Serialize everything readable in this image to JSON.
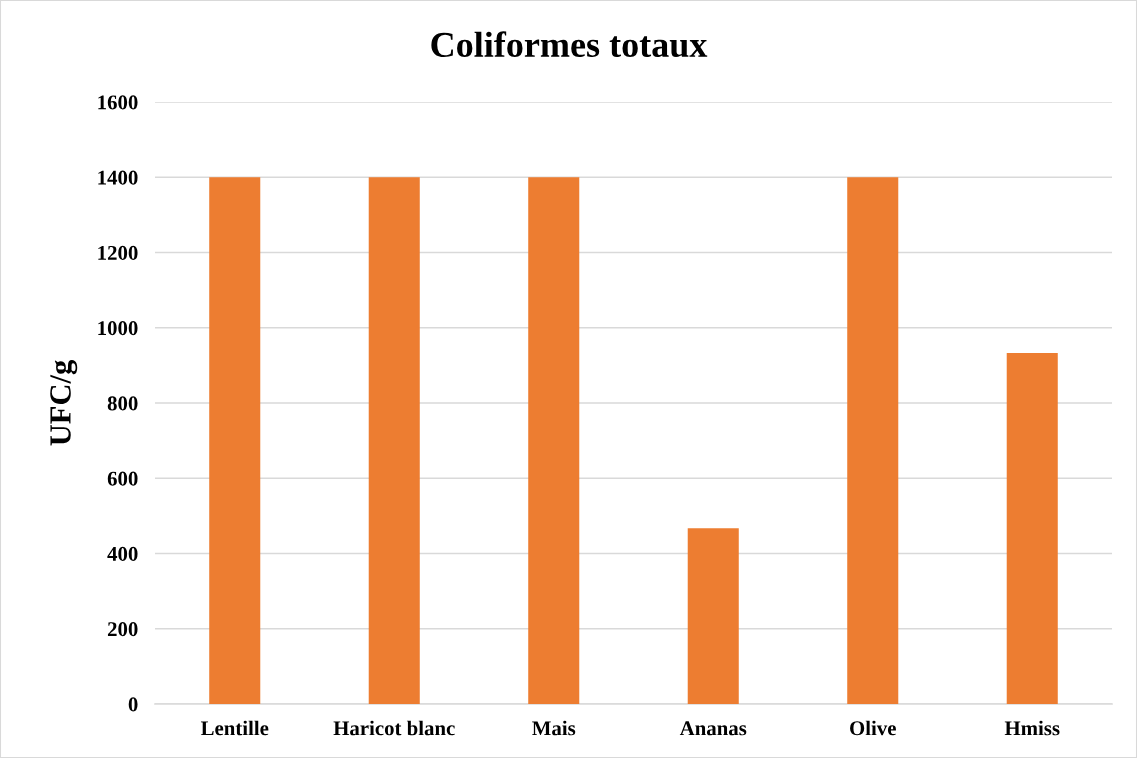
{
  "chart_data": {
    "type": "bar",
    "title": "Coliformes totaux",
    "ylabel": "UFC/g",
    "categories": [
      "Lentille",
      "Haricot blanc",
      "Mais",
      "Ananas",
      "Olive",
      "Hmiss"
    ],
    "values": [
      1400,
      1400,
      1400,
      467,
      1400,
      933
    ],
    "color": "#ed7d31",
    "ylim": [
      0,
      1600
    ],
    "yticks": [
      0,
      200,
      400,
      600,
      800,
      1000,
      1200,
      1400,
      1600
    ],
    "grid": "y",
    "legend": false
  }
}
